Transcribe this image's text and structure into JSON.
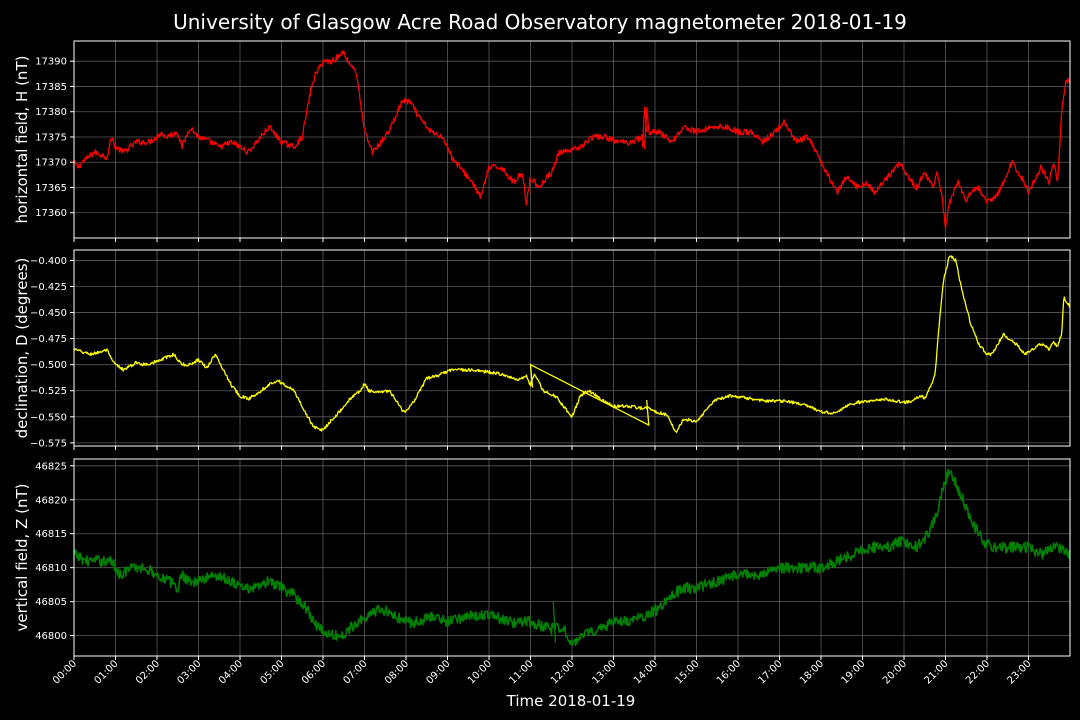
{
  "chart_data": {
    "type": "line",
    "title": "University of Glasgow Acre Road Observatory magnetometer 2018-01-19",
    "xlabel": "Time 2018-01-19",
    "x_ticks": [
      "00:00",
      "01:00",
      "02:00",
      "03:00",
      "04:00",
      "05:00",
      "06:00",
      "07:00",
      "08:00",
      "09:00",
      "10:00",
      "11:00",
      "12:00",
      "13:00",
      "14:00",
      "15:00",
      "16:00",
      "17:00",
      "18:00",
      "19:00",
      "20:00",
      "21:00",
      "22:00",
      "23:00"
    ],
    "xlim_hours": [
      0,
      24
    ],
    "grid": true,
    "panels": [
      {
        "ylabel": "horizontal field, H (nT)",
        "color": "#ff0000",
        "ylim": [
          17355,
          17394
        ],
        "y_ticks": [
          "17360",
          "17365",
          "17370",
          "17375",
          "17380",
          "17385",
          "17390"
        ],
        "noise": 0.6,
        "x": [
          0,
          0.1,
          0.2,
          0.5,
          0.8,
          0.9,
          1.0,
          1.2,
          1.5,
          1.8,
          2.0,
          2.1,
          2.2,
          2.5,
          2.6,
          2.8,
          3.0,
          3.3,
          3.5,
          3.8,
          4.0,
          4.2,
          4.5,
          4.7,
          5.0,
          5.3,
          5.5,
          5.7,
          5.8,
          6.0,
          6.2,
          6.4,
          6.5,
          6.6,
          6.8,
          7.0,
          7.2,
          7.5,
          7.7,
          7.9,
          8.1,
          8.3,
          8.6,
          8.9,
          9.1,
          9.3,
          9.6,
          9.8,
          10.0,
          10.3,
          10.6,
          10.8,
          10.9,
          11.0,
          11.2,
          11.5,
          11.7,
          11.9,
          12.2,
          12.5,
          12.8,
          13.1,
          13.4,
          13.7,
          13.75,
          13.8,
          13.85,
          14.1,
          14.4,
          14.7,
          15.0,
          15.4,
          15.7,
          16.0,
          16.3,
          16.6,
          16.9,
          17.1,
          17.4,
          17.7,
          18.0,
          18.2,
          18.4,
          18.6,
          18.9,
          19.1,
          19.3,
          19.6,
          19.9,
          20.1,
          20.3,
          20.5,
          20.7,
          20.8,
          20.9,
          21.0,
          21.1,
          21.3,
          21.5,
          21.6,
          21.8,
          22.0,
          22.2,
          22.4,
          22.6,
          22.9,
          23.0,
          23.3,
          23.5,
          23.6,
          23.7,
          23.8,
          23.9,
          24.0
        ],
        "values": [
          17370,
          17369,
          17370,
          17372,
          17371,
          17375,
          17373,
          17372,
          17374,
          17374,
          17375,
          17376,
          17375,
          17376,
          17373,
          17377,
          17375,
          17374,
          17373,
          17374,
          17373,
          17372,
          17375,
          17377,
          17374,
          17373,
          17375,
          17384,
          17387,
          17390,
          17390,
          17391,
          17392,
          17390,
          17388,
          17376,
          17372,
          17375,
          17378,
          17382,
          17382,
          17379,
          17376,
          17375,
          17371,
          17369,
          17366,
          17363,
          17369,
          17369,
          17366,
          17368,
          17362,
          17367,
          17365,
          17368,
          17372,
          17372,
          17373,
          17375,
          17375,
          17374,
          17374,
          17375,
          17373,
          17381,
          17376,
          17376,
          17374,
          17377,
          17376,
          17377,
          17377,
          17376,
          17376,
          17374,
          17376,
          17378,
          17374,
          17375,
          17370,
          17367,
          17364,
          17367,
          17365,
          17366,
          17364,
          17367,
          17370,
          17367,
          17365,
          17368,
          17365,
          17368,
          17364,
          17357,
          17362,
          17366,
          17362,
          17364,
          17365,
          17362,
          17363,
          17366,
          17370,
          17366,
          17364,
          17369,
          17366,
          17370,
          17366,
          17380,
          17386,
          17386
        ],
        "spikes": [
          [
            13.7,
            17373
          ],
          [
            13.75,
            17381
          ],
          [
            13.8,
            17376
          ]
        ]
      },
      {
        "ylabel": "declination, D (degrees)",
        "color": "#ffff00",
        "ylim": [
          -0.578,
          -0.39
        ],
        "y_ticks": [
          "−0.400",
          "−0.425",
          "−0.450",
          "−0.475",
          "−0.500",
          "−0.525",
          "−0.550",
          "−0.575"
        ],
        "noise": 0.0015,
        "x": [
          0,
          0.2,
          0.4,
          0.6,
          0.8,
          0.9,
          1.0,
          1.2,
          1.5,
          1.7,
          2.0,
          2.4,
          2.6,
          2.8,
          3.0,
          3.2,
          3.4,
          3.6,
          3.8,
          4.0,
          4.2,
          4.5,
          4.7,
          4.9,
          5.1,
          5.3,
          5.5,
          5.7,
          5.8,
          6.0,
          6.2,
          6.4,
          6.6,
          6.8,
          6.9,
          7.0,
          7.1,
          7.3,
          7.6,
          7.9,
          8.0,
          8.2,
          8.5,
          8.8,
          9.1,
          9.5,
          10.0,
          10.4,
          10.7,
          10.9,
          11.0,
          11.1,
          11.3,
          11.6,
          11.9,
          12.0,
          12.2,
          12.4,
          12.7,
          13.0,
          13.4,
          13.7,
          13.8,
          14.0,
          14.3,
          14.5,
          14.7,
          15.0,
          15.4,
          15.8,
          16.2,
          16.7,
          17.2,
          17.7,
          18.0,
          18.3,
          18.6,
          18.9,
          19.2,
          19.6,
          20.0,
          20.2,
          20.4,
          20.5,
          20.6,
          20.75,
          20.85,
          20.95,
          21.1,
          21.25,
          21.4,
          21.6,
          21.8,
          22.0,
          22.1,
          22.2,
          22.4,
          22.5,
          22.7,
          22.9,
          23.1,
          23.3,
          23.5,
          23.6,
          23.7,
          23.8,
          23.85,
          24.0
        ],
        "values": [
          -0.485,
          -0.488,
          -0.49,
          -0.488,
          -0.486,
          -0.495,
          -0.5,
          -0.505,
          -0.498,
          -0.5,
          -0.497,
          -0.49,
          -0.5,
          -0.5,
          -0.495,
          -0.503,
          -0.49,
          -0.505,
          -0.52,
          -0.53,
          -0.533,
          -0.525,
          -0.519,
          -0.515,
          -0.52,
          -0.525,
          -0.54,
          -0.555,
          -0.56,
          -0.563,
          -0.553,
          -0.545,
          -0.535,
          -0.528,
          -0.525,
          -0.518,
          -0.525,
          -0.527,
          -0.525,
          -0.543,
          -0.545,
          -0.535,
          -0.513,
          -0.51,
          -0.505,
          -0.505,
          -0.507,
          -0.51,
          -0.515,
          -0.51,
          -0.52,
          -0.508,
          -0.525,
          -0.53,
          -0.545,
          -0.55,
          -0.53,
          -0.525,
          -0.533,
          -0.54,
          -0.54,
          -0.542,
          -0.541,
          -0.545,
          -0.548,
          -0.565,
          -0.552,
          -0.555,
          -0.535,
          -0.53,
          -0.532,
          -0.535,
          -0.535,
          -0.54,
          -0.545,
          -0.547,
          -0.54,
          -0.536,
          -0.535,
          -0.533,
          -0.536,
          -0.535,
          -0.53,
          -0.532,
          -0.525,
          -0.51,
          -0.46,
          -0.42,
          -0.395,
          -0.4,
          -0.43,
          -0.46,
          -0.48,
          -0.49,
          -0.49,
          -0.485,
          -0.47,
          -0.475,
          -0.48,
          -0.49,
          -0.485,
          -0.48,
          -0.485,
          -0.478,
          -0.483,
          -0.47,
          -0.435,
          -0.445
        ],
        "spikes": [
          [
            13.8,
            -0.534
          ],
          [
            13.85,
            -0.558
          ],
          [
            11.0,
            -0.5
          ],
          [
            11.05,
            -0.522
          ]
        ]
      },
      {
        "ylabel": "vertical field, Z (nT)",
        "color": "#008000",
        "ylim": [
          46797,
          46826
        ],
        "y_ticks": [
          "46800",
          "46805",
          "46810",
          "46815",
          "46820",
          "46825"
        ],
        "noise": 0.8,
        "x": [
          0,
          0.3,
          0.6,
          0.9,
          1.1,
          1.4,
          1.7,
          2.0,
          2.3,
          2.5,
          2.6,
          2.8,
          3.0,
          3.4,
          3.8,
          4.1,
          4.4,
          4.7,
          5.0,
          5.3,
          5.6,
          5.9,
          6.2,
          6.5,
          6.8,
          7.1,
          7.4,
          7.7,
          8.0,
          8.3,
          8.6,
          9.0,
          9.5,
          10.0,
          10.5,
          11.0,
          11.5,
          11.8,
          12.0,
          12.3,
          12.6,
          13.0,
          13.4,
          13.8,
          14.1,
          14.4,
          14.7,
          15.0,
          15.5,
          16.0,
          16.5,
          17.0,
          17.5,
          18.0,
          18.4,
          18.8,
          19.2,
          19.6,
          20.0,
          20.3,
          20.6,
          20.8,
          21.0,
          21.1,
          21.2,
          21.35,
          21.5,
          21.7,
          21.9,
          22.1,
          22.4,
          22.7,
          23.0,
          23.3,
          23.6,
          23.8,
          24.0
        ],
        "values": [
          46812,
          46811,
          46811,
          46811,
          46809,
          46810,
          46810,
          46809,
          46808,
          46807,
          46809,
          46808,
          46808,
          46809,
          46808,
          46807,
          46807,
          46808,
          46807,
          46806,
          46804,
          46801,
          46800,
          46800,
          46802,
          46803,
          46804,
          46803,
          46802,
          46802,
          46803,
          46802,
          46803,
          46803,
          46802,
          46802,
          46801,
          46801,
          46799,
          46800,
          46801,
          46802,
          46802,
          46803,
          46804,
          46806,
          46807,
          46807,
          46808,
          46809,
          46809,
          46810,
          46810,
          46810,
          46811,
          46812,
          46813,
          46813,
          46814,
          46813,
          46815,
          46818,
          46823,
          46824,
          46823,
          46821,
          46819,
          46816,
          46814,
          46813,
          46813,
          46813,
          46813,
          46812,
          46813,
          46813,
          46812
        ],
        "spikes": [
          [
            11.55,
            46805
          ],
          [
            11.6,
            46799
          ]
        ]
      }
    ]
  }
}
